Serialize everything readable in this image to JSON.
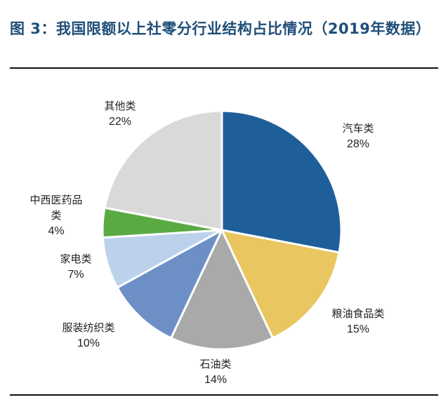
{
  "title": "图 3：我国限额以上社零分行业结构占比情况（2019年数据）",
  "chart_data": {
    "type": "pie",
    "title": "",
    "slices": [
      {
        "label_lines": [
          "汽车类"
        ],
        "value": 28,
        "value_label": "28%",
        "color": "#1f5f99"
      },
      {
        "label_lines": [
          "粮油食品类"
        ],
        "value": 15,
        "value_label": "15%",
        "color": "#e9c660"
      },
      {
        "label_lines": [
          "石油类"
        ],
        "value": 14,
        "value_label": "14%",
        "color": "#a9a9a9"
      },
      {
        "label_lines": [
          "服装纺织类"
        ],
        "value": 10,
        "value_label": "10%",
        "color": "#6c8fc6"
      },
      {
        "label_lines": [
          "家电类"
        ],
        "value": 7,
        "value_label": "7%",
        "color": "#bcd2ec"
      },
      {
        "label_lines": [
          "中西医药品",
          "类"
        ],
        "value": 4,
        "value_label": "4%",
        "color": "#5aaa44"
      },
      {
        "label_lines": [
          "其他类"
        ],
        "value": 22,
        "value_label": "22%",
        "color": "#d9d9d9"
      }
    ]
  }
}
